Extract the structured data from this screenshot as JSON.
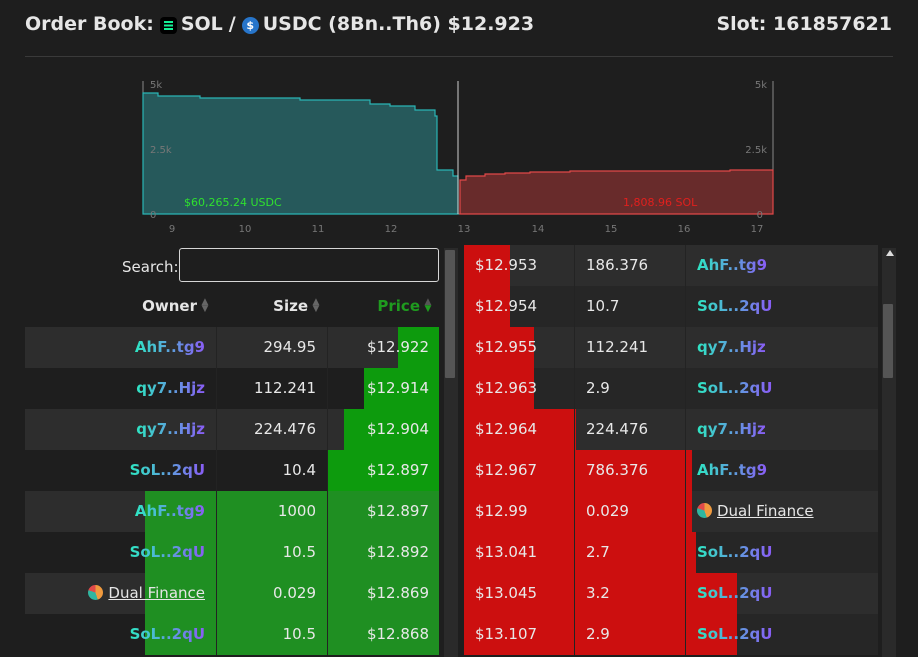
{
  "header": {
    "prefix": "Order Book:",
    "base": "SOL",
    "sep": "/",
    "quote": "USDC (8Bn..Th6) $12.923",
    "base_icon": "sol-icon",
    "quote_icon": "usdc-icon",
    "slot": "Slot: 161857621"
  },
  "depth": {
    "bid_total": "$60,265.24 USDC",
    "ask_total": "1,808.96 SOL",
    "x_ticks": [
      "9",
      "10",
      "11",
      "12",
      "13",
      "14",
      "15",
      "16",
      "17"
    ],
    "y_ticks_left": [
      "5k",
      "2.5k",
      "0"
    ],
    "y_ticks_right": [
      "5k",
      "2.5k",
      "0"
    ],
    "mid_price": 12.923,
    "bid_color": "#2ab5b5",
    "ask_color": "#e04848"
  },
  "search": {
    "label": "Search:",
    "value": "",
    "placeholder": ""
  },
  "bid_headers": {
    "owner": "Owner",
    "size": "Size",
    "price": "Price"
  },
  "bids": [
    {
      "owner": "AhF..tg9",
      "size": "294.95",
      "price": "$12.922",
      "depth_fill": 0.1
    },
    {
      "owner": "qy7..Hjz",
      "size": "112.241",
      "price": "$12.914",
      "depth_fill": 0.18
    },
    {
      "owner": "qy7..Hjz",
      "size": "224.476",
      "price": "$12.904",
      "depth_fill": 0.23
    },
    {
      "owner": "SoL..2qU",
      "size": "10.4",
      "price": "$12.897",
      "depth_fill": 0.27
    },
    {
      "owner": "AhF..tg9",
      "size": "1000",
      "price": "$12.897",
      "depth_fill": 0.71
    },
    {
      "owner": "SoL..2qU",
      "size": "10.5",
      "price": "$12.892",
      "depth_fill": 0.71
    },
    {
      "owner": "Dual Finance",
      "size": "0.029",
      "price": "$12.869",
      "depth_fill": 0.71,
      "dual": true
    },
    {
      "owner": "SoL..2qU",
      "size": "10.5",
      "price": "$12.868",
      "depth_fill": 0.71
    }
  ],
  "asks": [
    {
      "price": "$12.953",
      "size": "186.376",
      "owner": "AhF..tg9",
      "depth_fill": 0.11
    },
    {
      "price": "$12.954",
      "size": "10.7",
      "owner": "SoL..2qU",
      "depth_fill": 0.11
    },
    {
      "price": "$12.955",
      "size": "112.241",
      "owner": "qy7..Hjz",
      "depth_fill": 0.17
    },
    {
      "price": "$12.963",
      "size": "2.9",
      "owner": "SoL..2qU",
      "depth_fill": 0.17
    },
    {
      "price": "$12.964",
      "size": "224.476",
      "owner": "qy7..Hjz",
      "depth_fill": 0.27
    },
    {
      "price": "$12.967",
      "size": "786.376",
      "owner": "AhF..tg9",
      "depth_fill": 0.55
    },
    {
      "price": "$12.99",
      "size": "0.029",
      "owner": "Dual Finance",
      "depth_fill": 0.55,
      "dual": true
    },
    {
      "price": "$13.041",
      "size": "2.7",
      "owner": "SoL..2qU",
      "depth_fill": 0.56
    },
    {
      "price": "$13.045",
      "size": "3.2",
      "owner": "SoL..2qU",
      "depth_fill": 0.66
    },
    {
      "price": "$13.107",
      "size": "2.9",
      "owner": "SoL..2qU",
      "depth_fill": 0.66
    }
  ],
  "colors": {
    "bid_bar": "#1f8f22",
    "ask_bar": "#cc0f0f",
    "price_header": "#1f9b1f"
  }
}
